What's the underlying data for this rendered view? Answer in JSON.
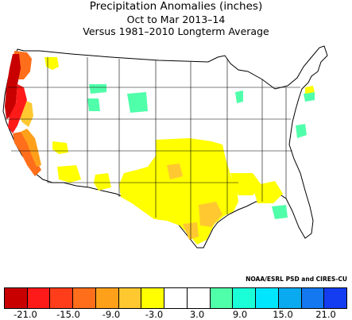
{
  "title": "Precipitation Anomalies (inches)",
  "subtitle_period": "Oct to Mar 2013–14",
  "subtitle_baseline": "Versus 1981–2010 Longterm Average",
  "credit": "NOAA/ESRL PSD and CIRES-CU",
  "legend": {
    "colors": [
      "#c80000",
      "#ff1a1a",
      "#ff3d1a",
      "#ff6e1a",
      "#ffa01a",
      "#ffc830",
      "#ffff00",
      "#ffffff",
      "#ffffff",
      "#50ffaa",
      "#1affd8",
      "#00e6ff",
      "#0aaaf0",
      "#1478f0",
      "#143cf0"
    ],
    "tick_labels": [
      "-21.0",
      "-15.0",
      "-9.0",
      "-3.0",
      "3.0",
      "9.0",
      "15.0",
      "21.0"
    ],
    "tick_values": [
      -21,
      -15,
      -9,
      -3,
      3,
      9,
      15,
      21
    ],
    "range": [
      -24,
      24
    ]
  },
  "map": {
    "region": "Contiguous United States climate divisions",
    "dry_core_color": "#c80000",
    "dry_strong_color": "#ff1a1a",
    "dry_mid_color": "#ff6e1a",
    "dry_light_color": "#ffa01a",
    "dry_weak_color": "#ffc830",
    "dry_slight_color": "#ffff00",
    "wet_slight_color": "#50ffaa",
    "land_color": "#ffffff",
    "border_color": "#000000"
  }
}
